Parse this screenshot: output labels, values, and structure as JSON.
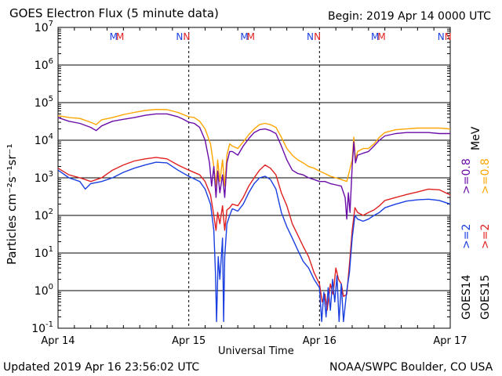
{
  "header": {
    "title": "GOES Electron Flux (5 minute data)",
    "begin": "Begin: 2019 Apr 14 0000 UTC"
  },
  "footer": {
    "updated": "Updated 2019 Apr 16 23:56:02 UTC",
    "credit": "NOAA/SWPC Boulder, CO USA"
  },
  "right_labels": {
    "goes14": "GOES14",
    "goes15": "GOES15",
    "ge2_14": ">=2",
    "ge2_15": ">=2",
    "ge08_14": ">=0.8",
    "ge08_15": ">=0.8",
    "mev": "MeV"
  },
  "colors": {
    "goes14_ge2": "#1a3fe0",
    "goes15_ge2": "#e02020",
    "goes14_ge08": "#6a0da8",
    "goes15_ge08": "#ffa500",
    "grid": "#000000"
  },
  "chart_data": {
    "type": "line",
    "title": "GOES Electron Flux (5 minute data)",
    "xlabel": "Universal Time",
    "ylabel": "Particles cm⁻²s⁻¹sr⁻¹",
    "ylog": true,
    "ylim": [
      0.1,
      10000000
    ],
    "xlim": [
      0,
      72
    ],
    "x_unit": "hours since 2019 Apr 14 0000 UTC",
    "x_ticks": [
      {
        "x": 0,
        "label": "Apr 14"
      },
      {
        "x": 24,
        "label": "Apr 15"
      },
      {
        "x": 48,
        "label": "Apr 16"
      },
      {
        "x": 72,
        "label": "Apr 17"
      }
    ],
    "y_ticks": [
      {
        "v": 10000000,
        "base": "10",
        "exp": "7"
      },
      {
        "v": 1000000,
        "base": "10",
        "exp": "6"
      },
      {
        "v": 100000,
        "base": "10",
        "exp": "5"
      },
      {
        "v": 10000,
        "base": "10",
        "exp": "4"
      },
      {
        "v": 1000,
        "base": "10",
        "exp": "3"
      },
      {
        "v": 100,
        "base": "10",
        "exp": "2"
      },
      {
        "v": 10,
        "base": "10",
        "exp": "1"
      },
      {
        "v": 1,
        "base": "10",
        "exp": "0"
      },
      {
        "v": 0.1,
        "base": "10",
        "exp": "-1"
      }
    ],
    "threshold": 1000,
    "markers": [
      {
        "x": 10.2,
        "label": "M",
        "series": "GOES14"
      },
      {
        "x": 11.4,
        "label": "M",
        "series": "GOES15"
      },
      {
        "x": 22.3,
        "label": "N",
        "series": "GOES14"
      },
      {
        "x": 23.6,
        "label": "N",
        "series": "GOES15"
      },
      {
        "x": 34.2,
        "label": "M",
        "series": "GOES14"
      },
      {
        "x": 35.4,
        "label": "M",
        "series": "GOES15"
      },
      {
        "x": 46.3,
        "label": "N",
        "series": "GOES14"
      },
      {
        "x": 47.6,
        "label": "N",
        "series": "GOES15"
      },
      {
        "x": 58.2,
        "label": "M",
        "series": "GOES14"
      },
      {
        "x": 59.4,
        "label": "M",
        "series": "GOES15"
      },
      {
        "x": 70.3,
        "label": "N",
        "series": "GOES14"
      },
      {
        "x": 71.6,
        "label": "N",
        "series": "GOES15"
      }
    ],
    "series": [
      {
        "name": "GOES15 >=0.8 MeV",
        "color": "#ffa500",
        "points": [
          [
            0,
            45000
          ],
          [
            2,
            40000
          ],
          [
            4,
            38000
          ],
          [
            6,
            30000
          ],
          [
            7,
            26000
          ],
          [
            8,
            35000
          ],
          [
            10,
            40000
          ],
          [
            12,
            48000
          ],
          [
            14,
            55000
          ],
          [
            16,
            62000
          ],
          [
            18,
            66000
          ],
          [
            20,
            65000
          ],
          [
            22,
            55000
          ],
          [
            23,
            48000
          ],
          [
            24,
            42000
          ],
          [
            25,
            40000
          ],
          [
            26,
            32000
          ],
          [
            27,
            20000
          ],
          [
            28,
            8000
          ],
          [
            28.6,
            2000
          ],
          [
            29,
            600
          ],
          [
            29.3,
            3000
          ],
          [
            29.7,
            800
          ],
          [
            30.2,
            3000
          ],
          [
            30.6,
            600
          ],
          [
            31,
            4000
          ],
          [
            31.5,
            8000
          ],
          [
            32,
            7000
          ],
          [
            33,
            6000
          ],
          [
            34,
            9000
          ],
          [
            35,
            14000
          ],
          [
            36,
            20000
          ],
          [
            37,
            26000
          ],
          [
            38,
            28000
          ],
          [
            39,
            26000
          ],
          [
            40,
            22000
          ],
          [
            41,
            12000
          ],
          [
            42,
            6000
          ],
          [
            43,
            4000
          ],
          [
            44,
            3000
          ],
          [
            45,
            2500
          ],
          [
            46,
            2000
          ],
          [
            47,
            1800
          ],
          [
            48,
            1500
          ],
          [
            49,
            1300
          ],
          [
            50,
            1100
          ],
          [
            51,
            1000
          ],
          [
            52,
            900
          ],
          [
            53,
            800
          ],
          [
            53.5,
            1500
          ],
          [
            54,
            3000
          ],
          [
            54.3,
            12000
          ],
          [
            54.6,
            3000
          ],
          [
            55,
            5000
          ],
          [
            56,
            6000
          ],
          [
            57,
            6000
          ],
          [
            58,
            8000
          ],
          [
            59,
            12000
          ],
          [
            60,
            16000
          ],
          [
            62,
            19000
          ],
          [
            64,
            20000
          ],
          [
            66,
            21000
          ],
          [
            68,
            21000
          ],
          [
            70,
            21000
          ],
          [
            72,
            20000
          ]
        ]
      },
      {
        "name": "GOES14 >=0.8 MeV",
        "color": "#6a0da8",
        "points": [
          [
            0,
            40000
          ],
          [
            2,
            32000
          ],
          [
            4,
            28000
          ],
          [
            6,
            22000
          ],
          [
            7,
            18000
          ],
          [
            8,
            24000
          ],
          [
            10,
            32000
          ],
          [
            12,
            36000
          ],
          [
            14,
            40000
          ],
          [
            16,
            46000
          ],
          [
            18,
            50000
          ],
          [
            20,
            50000
          ],
          [
            22,
            42000
          ],
          [
            23,
            36000
          ],
          [
            24,
            30000
          ],
          [
            25,
            28000
          ],
          [
            26,
            22000
          ],
          [
            27,
            10000
          ],
          [
            27.8,
            2500
          ],
          [
            28.2,
            600
          ],
          [
            28.6,
            2000
          ],
          [
            29,
            300
          ],
          [
            29.3,
            1500
          ],
          [
            29.7,
            400
          ],
          [
            30.2,
            1200
          ],
          [
            30.6,
            300
          ],
          [
            31,
            2500
          ],
          [
            31.5,
            5000
          ],
          [
            32,
            5000
          ],
          [
            33,
            4000
          ],
          [
            34,
            7000
          ],
          [
            35,
            11000
          ],
          [
            36,
            16000
          ],
          [
            37,
            19000
          ],
          [
            38,
            20000
          ],
          [
            39,
            18000
          ],
          [
            40,
            15000
          ],
          [
            41,
            7000
          ],
          [
            42,
            3000
          ],
          [
            43,
            1600
          ],
          [
            44,
            1300
          ],
          [
            45,
            1200
          ],
          [
            46,
            1000
          ],
          [
            47,
            900
          ],
          [
            48,
            800
          ],
          [
            49,
            800
          ],
          [
            50,
            700
          ],
          [
            51,
            650
          ],
          [
            52,
            600
          ],
          [
            52.7,
            300
          ],
          [
            53,
            80
          ],
          [
            53.3,
            400
          ],
          [
            53.6,
            120
          ],
          [
            54,
            2000
          ],
          [
            54.3,
            9000
          ],
          [
            54.6,
            2500
          ],
          [
            55,
            4000
          ],
          [
            56,
            4500
          ],
          [
            57,
            5000
          ],
          [
            58,
            7000
          ],
          [
            59,
            10000
          ],
          [
            60,
            13000
          ],
          [
            62,
            15000
          ],
          [
            64,
            16000
          ],
          [
            66,
            16000
          ],
          [
            68,
            16000
          ],
          [
            70,
            15000
          ],
          [
            72,
            15000
          ]
        ]
      },
      {
        "name": "GOES15 >=2 MeV",
        "color": "#e02020",
        "points": [
          [
            0,
            1800
          ],
          [
            2,
            1200
          ],
          [
            4,
            1000
          ],
          [
            5,
            900
          ],
          [
            6,
            800
          ],
          [
            8,
            1000
          ],
          [
            10,
            1600
          ],
          [
            12,
            2200
          ],
          [
            14,
            2800
          ],
          [
            16,
            3200
          ],
          [
            18,
            3500
          ],
          [
            20,
            3200
          ],
          [
            22,
            2200
          ],
          [
            24,
            1600
          ],
          [
            26,
            1200
          ],
          [
            27,
            800
          ],
          [
            28,
            350
          ],
          [
            28.6,
            100
          ],
          [
            29,
            40
          ],
          [
            29.3,
            120
          ],
          [
            29.7,
            60
          ],
          [
            30.2,
            180
          ],
          [
            30.6,
            40
          ],
          [
            31,
            140
          ],
          [
            31.5,
            160
          ],
          [
            32,
            200
          ],
          [
            33,
            180
          ],
          [
            34,
            300
          ],
          [
            35,
            600
          ],
          [
            36,
            1000
          ],
          [
            37,
            1600
          ],
          [
            38,
            2200
          ],
          [
            39,
            1800
          ],
          [
            40,
            1200
          ],
          [
            41,
            400
          ],
          [
            42,
            180
          ],
          [
            43,
            60
          ],
          [
            44,
            30
          ],
          [
            45,
            15
          ],
          [
            46,
            8
          ],
          [
            47,
            3
          ],
          [
            48,
            1.5
          ],
          [
            48.5,
            0.5
          ],
          [
            49,
            0.8
          ],
          [
            49.4,
            0.3
          ],
          [
            50,
            1.5
          ],
          [
            50.5,
            0.8
          ],
          [
            51,
            4
          ],
          [
            51.5,
            2
          ],
          [
            52,
            1.5
          ],
          [
            52.4,
            0.7
          ],
          [
            53,
            0.8
          ],
          [
            53.5,
            5
          ],
          [
            54,
            40
          ],
          [
            54.5,
            160
          ],
          [
            55,
            120
          ],
          [
            56,
            100
          ],
          [
            57,
            120
          ],
          [
            58,
            140
          ],
          [
            59,
            180
          ],
          [
            60,
            250
          ],
          [
            62,
            300
          ],
          [
            64,
            360
          ],
          [
            66,
            420
          ],
          [
            68,
            500
          ],
          [
            70,
            480
          ],
          [
            72,
            350
          ]
        ]
      },
      {
        "name": "GOES14 >=2 MeV",
        "color": "#1a3fe0",
        "points": [
          [
            0,
            1600
          ],
          [
            2,
            1000
          ],
          [
            4,
            800
          ],
          [
            5,
            500
          ],
          [
            6,
            700
          ],
          [
            8,
            800
          ],
          [
            10,
            1000
          ],
          [
            12,
            1400
          ],
          [
            14,
            1800
          ],
          [
            16,
            2200
          ],
          [
            18,
            2600
          ],
          [
            20,
            2500
          ],
          [
            22,
            1600
          ],
          [
            24,
            1100
          ],
          [
            26,
            800
          ],
          [
            27,
            500
          ],
          [
            28,
            200
          ],
          [
            28.6,
            40
          ],
          [
            28.9,
            3
          ],
          [
            29.1,
            0.15
          ],
          [
            29.4,
            8
          ],
          [
            29.7,
            2
          ],
          [
            30.2,
            25
          ],
          [
            30.4,
            0.15
          ],
          [
            30.6,
            8
          ],
          [
            31,
            60
          ],
          [
            31.5,
            100
          ],
          [
            32,
            150
          ],
          [
            33,
            130
          ],
          [
            34,
            200
          ],
          [
            35,
            400
          ],
          [
            36,
            700
          ],
          [
            37,
            1000
          ],
          [
            38,
            1100
          ],
          [
            39,
            900
          ],
          [
            40,
            500
          ],
          [
            41,
            120
          ],
          [
            42,
            50
          ],
          [
            43,
            25
          ],
          [
            44,
            12
          ],
          [
            45,
            6
          ],
          [
            46,
            4
          ],
          [
            47,
            2
          ],
          [
            48,
            1.2
          ],
          [
            48.4,
            0.15
          ],
          [
            48.8,
            0.9
          ],
          [
            49.2,
            0.2
          ],
          [
            49.6,
            1.2
          ],
          [
            50,
            0.3
          ],
          [
            50.4,
            2
          ],
          [
            50.8,
            0.5
          ],
          [
            51.2,
            2.5
          ],
          [
            51.6,
            0.15
          ],
          [
            52,
            1.5
          ],
          [
            52.4,
            0.15
          ],
          [
            53,
            1
          ],
          [
            53.5,
            3
          ],
          [
            54,
            25
          ],
          [
            54.5,
            100
          ],
          [
            55,
            80
          ],
          [
            56,
            70
          ],
          [
            57,
            80
          ],
          [
            58,
            100
          ],
          [
            59,
            120
          ],
          [
            60,
            160
          ],
          [
            62,
            200
          ],
          [
            64,
            240
          ],
          [
            66,
            260
          ],
          [
            68,
            270
          ],
          [
            70,
            250
          ],
          [
            72,
            200
          ]
        ]
      }
    ]
  }
}
